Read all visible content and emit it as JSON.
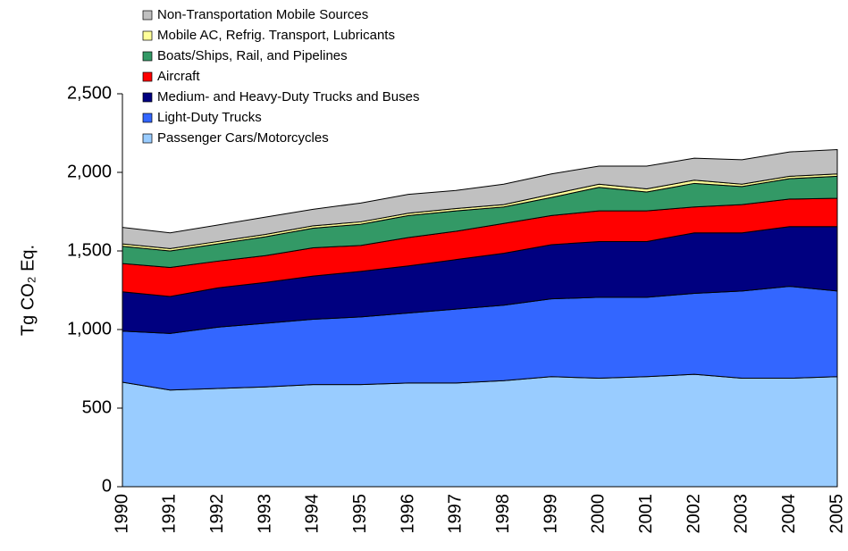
{
  "chart_data": {
    "type": "stacked_area",
    "ylabel": "Tg CO₂ Eq.",
    "categories": [
      "1990",
      "1991",
      "1992",
      "1993",
      "1994",
      "1995",
      "1996",
      "1997",
      "1998",
      "1999",
      "2000",
      "2001",
      "2002",
      "2003",
      "2004",
      "2005"
    ],
    "series": [
      {
        "name": "Passenger Cars/Motorcycles",
        "color": "#99ccff",
        "values": [
          665,
          615,
          625,
          635,
          650,
          650,
          660,
          660,
          675,
          700,
          690,
          700,
          715,
          690,
          690,
          700
        ]
      },
      {
        "name": "Light-Duty Trucks",
        "color": "#3366ff",
        "values": [
          325,
          360,
          390,
          405,
          415,
          430,
          445,
          470,
          480,
          495,
          515,
          505,
          515,
          555,
          585,
          545
        ]
      },
      {
        "name": "Medium- and Heavy-Duty Trucks and Buses",
        "color": "#000080",
        "values": [
          250,
          235,
          250,
          260,
          275,
          290,
          300,
          315,
          330,
          345,
          355,
          355,
          385,
          370,
          380,
          410
        ]
      },
      {
        "name": "Aircraft",
        "color": "#ff0000",
        "values": [
          180,
          185,
          170,
          170,
          180,
          165,
          180,
          180,
          190,
          185,
          195,
          195,
          165,
          180,
          175,
          180
        ]
      },
      {
        "name": "Boats/Ships, Rail, and Pipelines",
        "color": "#339966",
        "values": [
          110,
          105,
          110,
          120,
          125,
          135,
          140,
          130,
          105,
          115,
          150,
          120,
          150,
          115,
          130,
          140
        ]
      },
      {
        "name": "Mobile AC, Refrig. Transport, Lubricants",
        "color": "#ffff99",
        "values": [
          15,
          15,
          15,
          15,
          15,
          15,
          15,
          15,
          15,
          20,
          20,
          20,
          20,
          15,
          15,
          15
        ]
      },
      {
        "name": "Non-Transportation Mobile Sources",
        "color": "#c0c0c0",
        "values": [
          105,
          100,
          105,
          110,
          105,
          120,
          120,
          115,
          130,
          130,
          115,
          145,
          140,
          155,
          155,
          155
        ]
      }
    ],
    "ylim": [
      0,
      2500
    ],
    "yticks": [
      0,
      500,
      {
        "value": 1000,
        "label": "1,000"
      },
      {
        "value": 1500,
        "label": "1,500"
      },
      {
        "value": 2000,
        "label": "2,000"
      },
      {
        "value": 2500,
        "label": "2,500"
      }
    ],
    "legend": "top-left"
  }
}
